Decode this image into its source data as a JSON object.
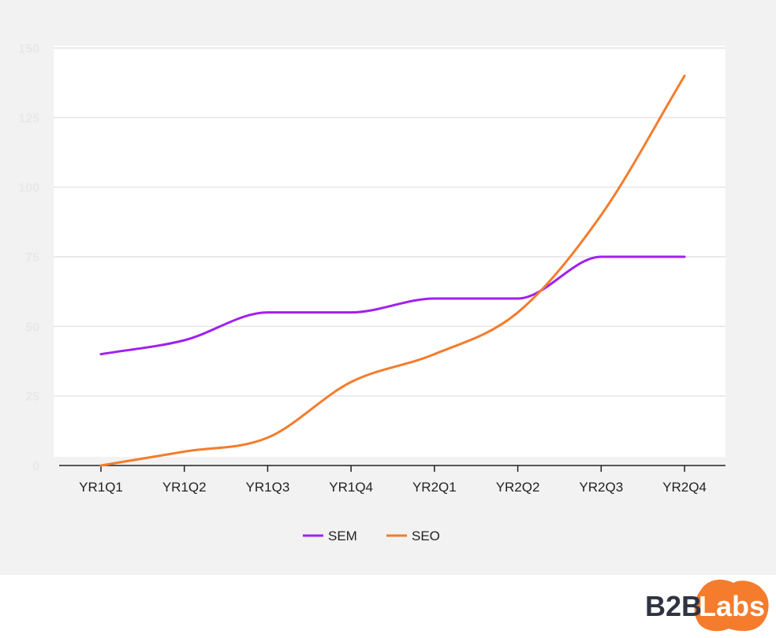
{
  "chart_data": {
    "type": "line",
    "categories": [
      "YR1Q1",
      "YR1Q2",
      "YR1Q3",
      "YR1Q4",
      "YR2Q1",
      "YR2Q2",
      "YR2Q3",
      "YR2Q4"
    ],
    "series": [
      {
        "name": "SEM",
        "values": [
          40,
          45,
          55,
          55,
          60,
          60,
          75,
          75
        ],
        "color": "#a020f0"
      },
      {
        "name": "SEO",
        "values": [
          0,
          5,
          10,
          30,
          40,
          55,
          90,
          140
        ],
        "color": "#f47c2c"
      }
    ],
    "y_ticks": [
      0,
      25,
      50,
      75,
      100,
      125,
      150
    ],
    "ylim": [
      0,
      150
    ],
    "grid": true,
    "legend_position": "bottom-center",
    "smooth": true
  },
  "logo": {
    "part1": "B2B",
    "part2": "Labs",
    "accent_color": "#f47c2c",
    "text_color": "#2f3442"
  }
}
